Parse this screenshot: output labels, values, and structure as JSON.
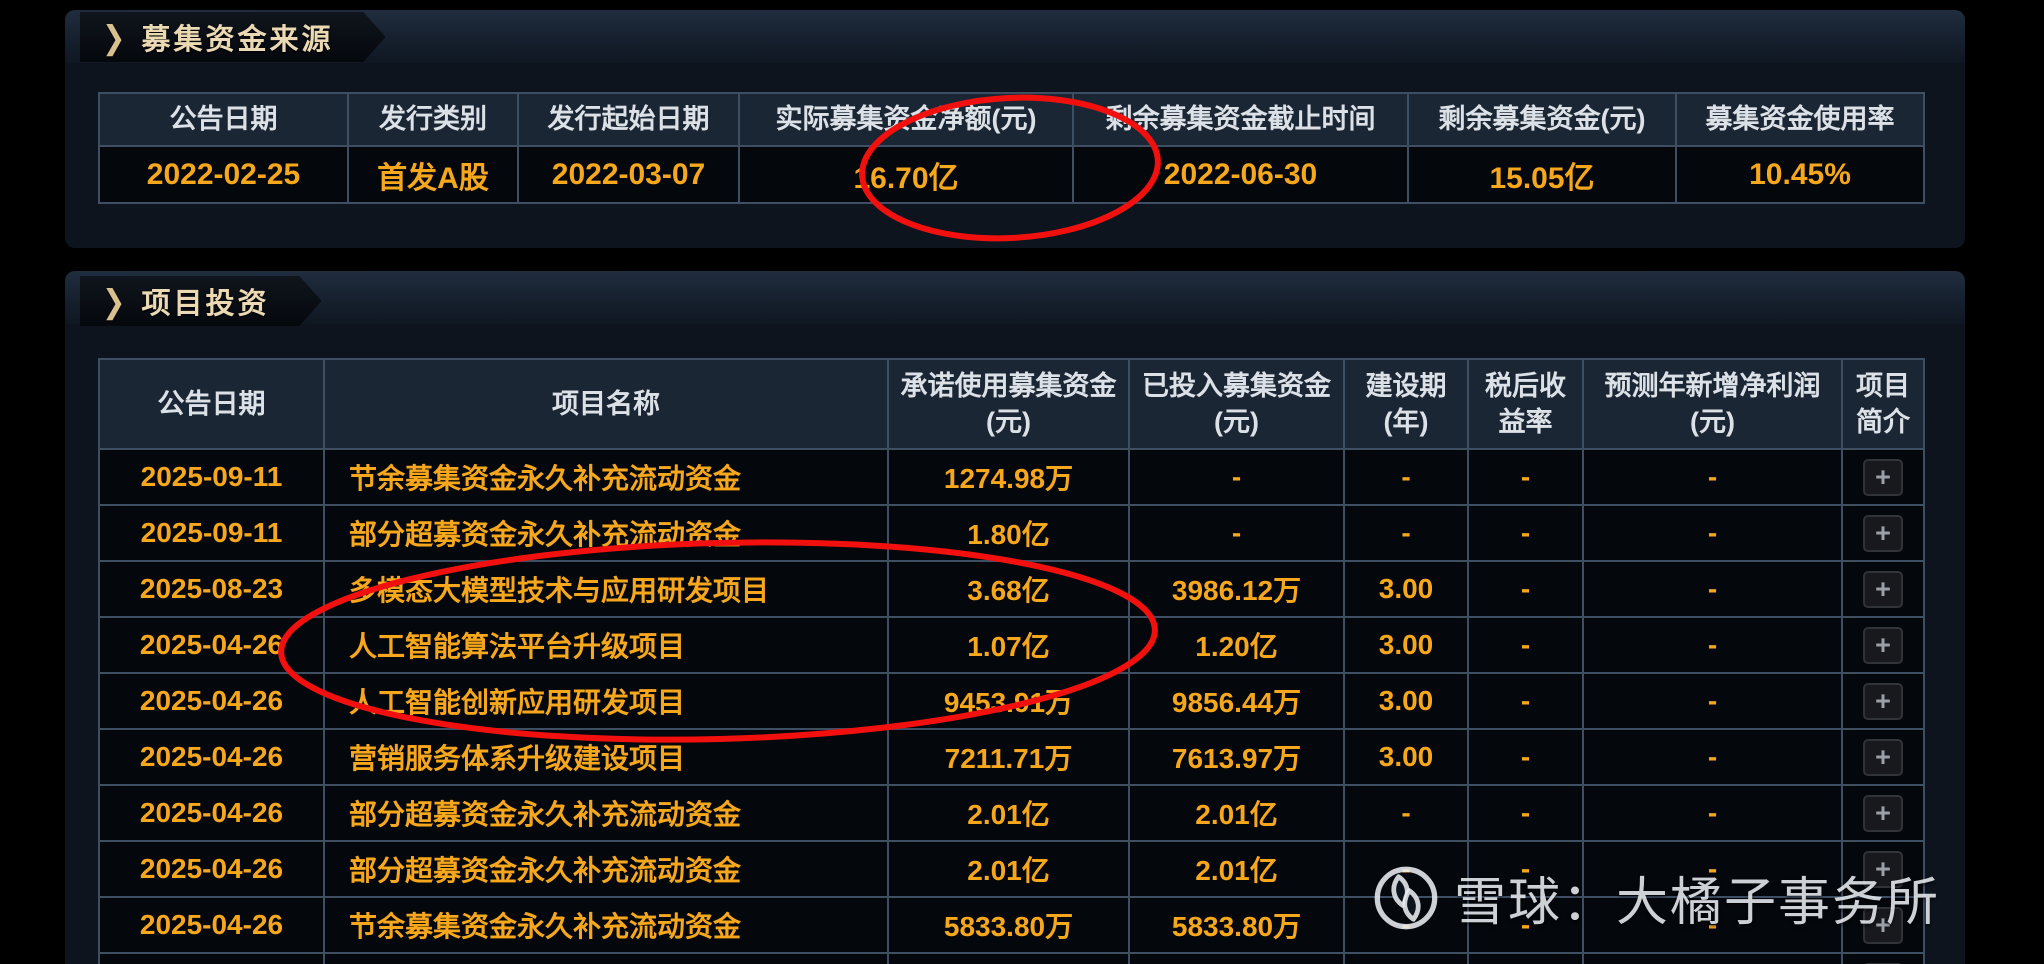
{
  "colors": {
    "accent_orange": "#F7A71C",
    "header_text": "#DCE1E7",
    "table_border": "#3E4F64",
    "panel_background": "#0D141D",
    "tab_text": "#EAD9B2",
    "annotation_red": "#F2100F",
    "watermark_gray": "#E9EDF1"
  },
  "section1": {
    "title": "募集资金来源",
    "chevron_icon": "❯",
    "table": {
      "headers": [
        "公告日期",
        "发行类别",
        "发行起始日期",
        "实际募集资金净额(元)",
        "剩余募集资金截止时间",
        "剩余募集资金(元)",
        "募集资金使用率"
      ],
      "rows": [
        [
          "2022-02-25",
          "首发A股",
          "2022-03-07",
          "16.70亿",
          "2022-06-30",
          "15.05亿",
          "10.45%"
        ]
      ]
    }
  },
  "section2": {
    "title": "项目投资",
    "chevron_icon": "❯",
    "table": {
      "headers": [
        "公告日期",
        "项目名称",
        "承诺使用募集资金(元)",
        "已投入募集资金(元)",
        "建设期(年)",
        "税后收益率",
        "预测年新增净利润(元)",
        "项目简介"
      ],
      "expand_button_label": "+",
      "rows": [
        [
          "2025-09-11",
          "节余募集资金永久补充流动资金",
          "1274.98万",
          "-",
          "-",
          "-",
          "-"
        ],
        [
          "2025-09-11",
          "部分超募资金永久补充流动资金",
          "1.80亿",
          "-",
          "-",
          "-",
          "-"
        ],
        [
          "2025-08-23",
          "多模态大模型技术与应用研发项目",
          "3.68亿",
          "3986.12万",
          "3.00",
          "-",
          "-"
        ],
        [
          "2025-04-26",
          "人工智能算法平台升级项目",
          "1.07亿",
          "1.20亿",
          "3.00",
          "-",
          "-"
        ],
        [
          "2025-04-26",
          "人工智能创新应用研发项目",
          "9453.91万",
          "9856.44万",
          "3.00",
          "-",
          "-"
        ],
        [
          "2025-04-26",
          "营销服务体系升级建设项目",
          "7211.71万",
          "7613.97万",
          "3.00",
          "-",
          "-"
        ],
        [
          "2025-04-26",
          "部分超募资金永久补充流动资金",
          "2.01亿",
          "2.01亿",
          "-",
          "-",
          "-"
        ],
        [
          "2025-04-26",
          "部分超募资金永久补充流动资金",
          "2.01亿",
          "2.01亿",
          "-",
          "-",
          "-"
        ],
        [
          "2025-04-26",
          "节余募集资金永久补充流动资金",
          "5833.80万",
          "5833.80万",
          "-",
          "-",
          "-"
        ]
      ]
    }
  },
  "watermark": {
    "text": "雪球：大橘子事务所",
    "logo_icon": "xueqiu-logo"
  }
}
